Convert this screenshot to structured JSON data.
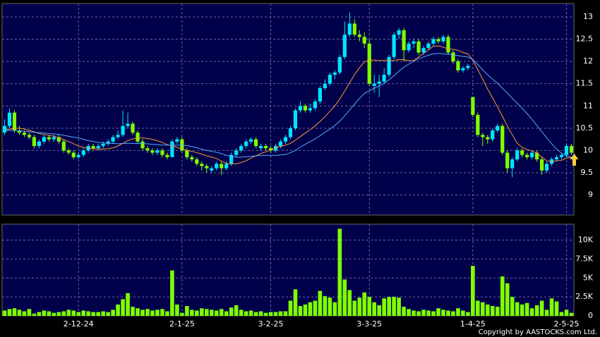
{
  "chart_data": {
    "type": "candlestick",
    "copyright": "Copyright by AASTOCKS.com Ltd.",
    "up_color": "#00e5ff",
    "down_color": "#80ff00",
    "volume_color": "#80ff00",
    "categories": [
      null,
      null,
      null,
      null,
      null,
      null,
      null,
      null,
      null,
      null,
      null,
      null,
      null,
      null,
      null,
      "2-12-24",
      null,
      null,
      null,
      null,
      null,
      null,
      null,
      null,
      null,
      null,
      null,
      null,
      null,
      null,
      null,
      null,
      null,
      null,
      null,
      null,
      "2-1-25",
      null,
      null,
      null,
      null,
      null,
      null,
      null,
      null,
      null,
      null,
      null,
      null,
      null,
      null,
      null,
      null,
      null,
      "3-2-25",
      null,
      null,
      null,
      null,
      null,
      null,
      null,
      null,
      null,
      null,
      null,
      null,
      null,
      null,
      null,
      null,
      null,
      null,
      null,
      "3-3-25",
      null,
      null,
      null,
      null,
      null,
      null,
      null,
      null,
      null,
      null,
      null,
      null,
      null,
      null,
      null,
      null,
      null,
      null,
      null,
      null,
      "1-4-25",
      null,
      null,
      null,
      null,
      null,
      null,
      null,
      null,
      null,
      null,
      null,
      null,
      null,
      null,
      null,
      null,
      null,
      null,
      "2-5-25",
      null
    ],
    "ohlc": [
      [
        10.4,
        10.7,
        10.35,
        10.55
      ],
      [
        10.55,
        10.95,
        10.5,
        10.85
      ],
      [
        10.85,
        10.9,
        10.4,
        10.45
      ],
      [
        10.45,
        10.55,
        10.35,
        10.4
      ],
      [
        10.4,
        10.45,
        10.3,
        10.35
      ],
      [
        10.35,
        10.4,
        10.25,
        10.3
      ],
      [
        10.3,
        10.35,
        10.05,
        10.1
      ],
      [
        10.1,
        10.25,
        10.05,
        10.2
      ],
      [
        10.2,
        10.35,
        10.15,
        10.3
      ],
      [
        10.3,
        10.35,
        10.2,
        10.25
      ],
      [
        10.25,
        10.35,
        10.2,
        10.3
      ],
      [
        10.3,
        10.35,
        10.15,
        10.2
      ],
      [
        10.2,
        10.25,
        9.95,
        10.0
      ],
      [
        10.0,
        10.05,
        9.9,
        9.95
      ],
      [
        9.95,
        10.0,
        9.8,
        9.85
      ],
      [
        9.85,
        9.95,
        9.8,
        9.9
      ],
      [
        9.9,
        10.05,
        9.85,
        10.0
      ],
      [
        10.0,
        10.15,
        9.95,
        10.1
      ],
      [
        10.1,
        10.15,
        10.0,
        10.05
      ],
      [
        10.05,
        10.15,
        10.0,
        10.1
      ],
      [
        10.1,
        10.2,
        10.05,
        10.15
      ],
      [
        10.15,
        10.25,
        10.1,
        10.2
      ],
      [
        10.2,
        10.35,
        10.15,
        10.3
      ],
      [
        10.3,
        10.45,
        10.25,
        10.35
      ],
      [
        10.35,
        10.9,
        10.3,
        10.55
      ],
      [
        10.55,
        10.85,
        10.5,
        10.6
      ],
      [
        10.6,
        10.65,
        10.35,
        10.4
      ],
      [
        10.4,
        10.45,
        10.15,
        10.2
      ],
      [
        10.2,
        10.25,
        10.0,
        10.05
      ],
      [
        10.05,
        10.1,
        9.95,
        10.0
      ],
      [
        10.0,
        10.05,
        9.9,
        9.95
      ],
      [
        9.95,
        10.05,
        9.9,
        10.0
      ],
      [
        10.0,
        10.05,
        9.85,
        9.9
      ],
      [
        9.9,
        9.95,
        9.8,
        9.85
      ],
      [
        9.85,
        10.25,
        9.85,
        10.2
      ],
      [
        10.2,
        10.3,
        10.15,
        10.25
      ],
      [
        10.25,
        10.3,
        9.95,
        10.0
      ],
      [
        10.0,
        10.05,
        9.8,
        9.85
      ],
      [
        9.85,
        9.9,
        9.75,
        9.8
      ],
      [
        9.8,
        9.85,
        9.65,
        9.7
      ],
      [
        9.7,
        9.75,
        9.55,
        9.65
      ],
      [
        9.65,
        9.7,
        9.5,
        9.6
      ],
      [
        9.55,
        9.65,
        9.5,
        9.6
      ],
      [
        9.6,
        9.75,
        9.55,
        9.7
      ],
      [
        9.7,
        9.75,
        9.45,
        9.6
      ],
      [
        9.6,
        9.75,
        9.55,
        9.7
      ],
      [
        9.7,
        9.95,
        9.65,
        9.9
      ],
      [
        9.9,
        10.05,
        9.85,
        10.0
      ],
      [
        10.0,
        10.15,
        9.95,
        10.1
      ],
      [
        10.1,
        10.25,
        10.05,
        10.2
      ],
      [
        10.2,
        10.3,
        10.15,
        10.25
      ],
      [
        10.25,
        10.3,
        10.05,
        10.1
      ],
      [
        10.05,
        10.15,
        10.0,
        10.1
      ],
      [
        10.1,
        10.15,
        10.0,
        10.05
      ],
      [
        10.05,
        10.1,
        9.95,
        10.0
      ],
      [
        10.0,
        10.15,
        9.95,
        10.1
      ],
      [
        10.1,
        10.25,
        10.05,
        10.2
      ],
      [
        10.2,
        10.35,
        10.15,
        10.3
      ],
      [
        10.3,
        10.55,
        10.25,
        10.5
      ],
      [
        10.5,
        10.95,
        10.45,
        10.9
      ],
      [
        10.9,
        11.1,
        10.85,
        11.0
      ],
      [
        11.0,
        11.05,
        10.85,
        10.9
      ],
      [
        10.9,
        11.05,
        10.85,
        10.95
      ],
      [
        10.95,
        11.15,
        10.9,
        11.1
      ],
      [
        11.1,
        11.45,
        11.05,
        11.4
      ],
      [
        11.4,
        11.6,
        11.35,
        11.5
      ],
      [
        11.5,
        11.75,
        11.45,
        11.7
      ],
      [
        11.7,
        11.8,
        11.6,
        11.75
      ],
      [
        11.75,
        12.15,
        11.7,
        12.1
      ],
      [
        12.1,
        12.9,
        12.05,
        12.6
      ],
      [
        12.6,
        13.1,
        12.55,
        12.85
      ],
      [
        12.85,
        12.95,
        12.55,
        12.6
      ],
      [
        12.6,
        12.7,
        12.45,
        12.55
      ],
      [
        12.55,
        12.65,
        12.3,
        12.4
      ],
      [
        12.4,
        12.5,
        11.45,
        11.5
      ],
      [
        11.45,
        11.7,
        11.3,
        11.5
      ],
      [
        11.5,
        11.7,
        11.2,
        11.55
      ],
      [
        11.55,
        11.85,
        11.5,
        11.7
      ],
      [
        11.7,
        12.15,
        11.65,
        12.1
      ],
      [
        12.1,
        12.65,
        12.05,
        12.6
      ],
      [
        12.6,
        12.75,
        12.5,
        12.7
      ],
      [
        12.7,
        12.75,
        12.0,
        12.25
      ],
      [
        12.25,
        12.45,
        12.2,
        12.4
      ],
      [
        12.4,
        12.5,
        12.3,
        12.45
      ],
      [
        12.45,
        12.5,
        12.15,
        12.2
      ],
      [
        12.2,
        12.35,
        12.15,
        12.3
      ],
      [
        12.3,
        12.45,
        12.25,
        12.4
      ],
      [
        12.4,
        12.55,
        12.35,
        12.5
      ],
      [
        12.5,
        12.55,
        12.4,
        12.45
      ],
      [
        12.45,
        12.6,
        12.4,
        12.55
      ],
      [
        12.55,
        12.6,
        12.15,
        12.2
      ],
      [
        12.2,
        12.25,
        11.95,
        12.0
      ],
      [
        12.0,
        12.05,
        11.75,
        11.8
      ],
      [
        11.8,
        11.9,
        11.75,
        11.85
      ],
      [
        11.85,
        11.95,
        11.8,
        11.9
      ],
      [
        11.2,
        11.2,
        10.75,
        10.8
      ],
      [
        10.8,
        10.85,
        10.3,
        10.35
      ],
      [
        10.35,
        10.4,
        10.1,
        10.3
      ],
      [
        10.3,
        10.35,
        10.15,
        10.25
      ],
      [
        10.25,
        10.5,
        10.2,
        10.45
      ],
      [
        10.45,
        10.6,
        10.4,
        10.55
      ],
      [
        10.55,
        10.6,
        9.9,
        9.95
      ],
      [
        9.95,
        10.0,
        9.5,
        9.6
      ],
      [
        9.6,
        9.85,
        9.4,
        9.8
      ],
      [
        9.8,
        10.05,
        9.75,
        10.0
      ],
      [
        10.0,
        10.05,
        9.85,
        9.9
      ],
      [
        9.9,
        9.95,
        9.8,
        9.85
      ],
      [
        9.85,
        10.0,
        9.8,
        9.95
      ],
      [
        9.95,
        10.0,
        9.75,
        9.8
      ],
      [
        9.8,
        9.85,
        9.45,
        9.55
      ],
      [
        9.55,
        9.75,
        9.5,
        9.7
      ],
      [
        9.7,
        9.85,
        9.65,
        9.8
      ],
      [
        9.8,
        9.9,
        9.75,
        9.85
      ],
      [
        9.85,
        9.95,
        9.8,
        9.9
      ],
      [
        9.9,
        10.15,
        9.85,
        10.1
      ],
      [
        10.1,
        10.15,
        9.9,
        9.95
      ]
    ],
    "ma_series": [
      {
        "color": "#ff9933",
        "values": [
          10.45,
          10.48,
          10.5,
          10.5,
          10.48,
          10.45,
          10.42,
          10.38,
          10.36,
          10.34,
          10.32,
          10.28,
          10.24,
          10.2,
          10.15,
          10.1,
          10.07,
          10.05,
          10.04,
          10.03,
          10.03,
          10.04,
          10.06,
          10.1,
          10.16,
          10.22,
          10.26,
          10.28,
          10.28,
          10.27,
          10.25,
          10.22,
          10.18,
          10.13,
          10.1,
          10.07,
          10.03,
          10.0,
          9.98,
          9.95,
          9.92,
          9.88,
          9.85,
          9.82,
          9.76,
          9.71,
          9.7,
          9.7,
          9.73,
          9.77,
          9.83,
          9.88,
          9.93,
          9.97,
          10.01,
          10.06,
          10.09,
          10.12,
          10.16,
          10.23,
          10.31,
          10.39,
          10.47,
          10.55,
          10.65,
          10.76,
          10.88,
          11.0,
          11.16,
          11.33,
          11.52,
          11.7,
          11.86,
          11.99,
          12.03,
          12.03,
          12.02,
          12.02,
          12.02,
          12.02,
          12.04,
          12.04,
          12.02,
          12.02,
          12.1,
          12.18,
          12.26,
          12.34,
          12.35,
          12.32,
          12.28,
          12.27,
          12.25,
          12.2,
          12.17,
          12.03,
          11.82,
          11.6,
          11.38,
          11.18,
          10.98,
          10.77,
          10.55,
          10.35,
          10.16,
          10.07,
          10.02,
          9.99,
          9.94,
          9.85,
          9.77,
          9.75,
          9.77,
          9.78,
          9.83,
          9.84
        ]
      },
      {
        "color": "#55aaff",
        "values": [
          10.45,
          10.45,
          10.45,
          10.44,
          10.43,
          10.42,
          10.41,
          10.4,
          10.39,
          10.38,
          10.37,
          10.36,
          10.34,
          10.32,
          10.3,
          10.28,
          10.25,
          10.22,
          10.2,
          10.18,
          10.17,
          10.16,
          10.16,
          10.15,
          10.16,
          10.16,
          10.16,
          10.16,
          10.16,
          10.15,
          10.14,
          10.13,
          10.12,
          10.12,
          10.12,
          10.12,
          10.12,
          10.11,
          10.09,
          10.06,
          10.03,
          10.0,
          9.98,
          9.96,
          9.93,
          9.89,
          9.87,
          9.85,
          9.85,
          9.86,
          9.87,
          9.88,
          9.89,
          9.89,
          9.89,
          9.89,
          9.9,
          9.91,
          9.95,
          10.0,
          10.07,
          10.14,
          10.2,
          10.26,
          10.33,
          10.41,
          10.48,
          10.56,
          10.66,
          10.78,
          10.91,
          11.04,
          11.17,
          11.28,
          11.34,
          11.4,
          11.45,
          11.51,
          11.59,
          11.68,
          11.78,
          11.87,
          11.94,
          12.0,
          12.06,
          12.1,
          12.14,
          12.17,
          12.18,
          12.17,
          12.16,
          12.15,
          12.13,
          12.11,
          12.1,
          12.04,
          11.93,
          11.81,
          11.7,
          11.6,
          11.51,
          11.4,
          11.29,
          11.17,
          11.06,
          10.95,
          10.83,
          10.7,
          10.56,
          10.42,
          10.28,
          10.15,
          10.03,
          9.94,
          9.88,
          9.85
        ]
      }
    ],
    "volume": [
      700,
      900,
      1000,
      800,
      600,
      900,
      300,
      500,
      700,
      600,
      400,
      500,
      600,
      800,
      700,
      500,
      700,
      600,
      500,
      500,
      600,
      500,
      800,
      1500,
      2200,
      3000,
      1200,
      1000,
      800,
      900,
      700,
      800,
      900,
      600,
      6000,
      1500,
      400,
      1300,
      800,
      700,
      1000,
      900,
      800,
      700,
      900,
      600,
      1100,
      1400,
      800,
      600,
      700,
      500,
      600,
      400,
      500,
      500,
      600,
      600,
      2000,
      3500,
      1300,
      1500,
      1800,
      2000,
      3300,
      2600,
      2400,
      1800,
      11500,
      4800,
      3400,
      2000,
      2400,
      3100,
      2500,
      1800,
      1400,
      2300,
      2500,
      2500,
      2400,
      1200,
      900,
      700,
      600,
      800,
      700,
      600,
      1000,
      800,
      700,
      600,
      1000,
      700,
      500,
      6600,
      2000,
      1800,
      1500,
      1300,
      1200,
      5200,
      4300,
      2500,
      1800,
      1500,
      1700,
      1000,
      1400,
      2000,
      800,
      2300,
      1900,
      500,
      800,
      400
    ],
    "ylim": [
      8.55,
      13.3
    ],
    "yticks": [
      9,
      9.5,
      10,
      10.5,
      11,
      11.5,
      12,
      12.5,
      13
    ],
    "y2lim": [
      0,
      12100
    ],
    "y2ticks": [
      0,
      {
        "value": 2500,
        "label": "2.5K"
      },
      {
        "value": 5000,
        "label": "5K"
      },
      {
        "value": 7500,
        "label": "7.5K"
      },
      {
        "value": 10000,
        "label": "10K"
      }
    ],
    "grid": true
  }
}
